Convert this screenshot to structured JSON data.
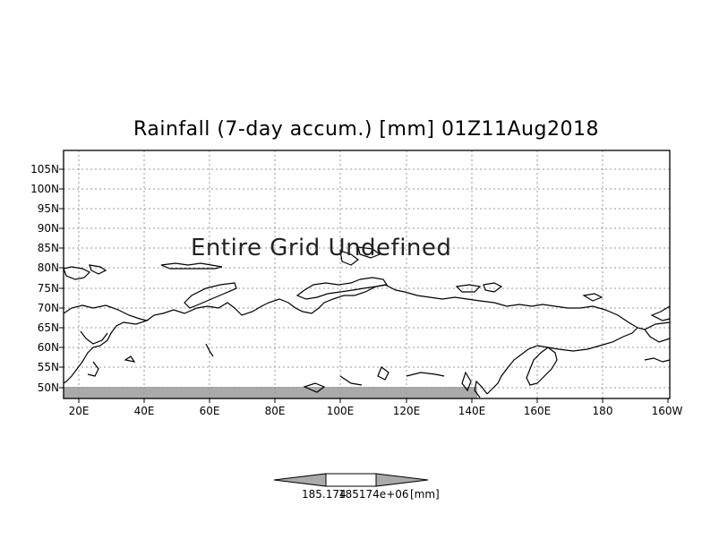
{
  "title": "Rainfall (7-day accum.) [mm] 01Z11Aug2018",
  "message": "Entire Grid Undefined",
  "lat_labels": [
    "105N",
    "100N",
    "95N",
    "90N",
    "85N",
    "80N",
    "75N",
    "70N",
    "65N",
    "60N",
    "55N",
    "50N"
  ],
  "lon_labels": [
    "20E",
    "40E",
    "60E",
    "80E",
    "100E",
    "120E",
    "140E",
    "160E",
    "180",
    "160W"
  ],
  "colorbar": {
    "left_value": "185.174",
    "right_value": "185174e+06",
    "unit": "[mm]"
  },
  "colors": {
    "coastline": "#000000",
    "grid": "#999999",
    "shade": "#aaaaaa"
  }
}
